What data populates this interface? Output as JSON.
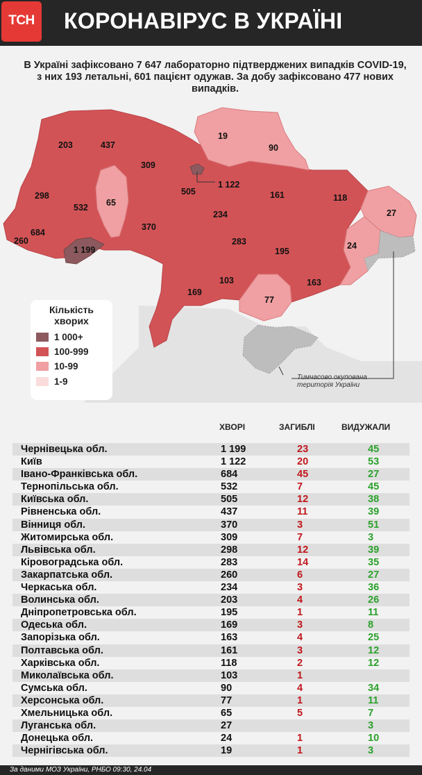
{
  "header": {
    "logo": "ТСН",
    "title": "КОРОНАВІРУС В УКРАЇНІ"
  },
  "summary": "В Україні зафіксовано 7 647 лабораторно підтверджених випадків COVID-19, з них 193 летальні, 601 пацієнт одужав. За добу зафіксовано 477 нових випадків.",
  "colors": {
    "dark": "#8c5a5e",
    "red": "#d25356",
    "pink": "#f0a0a2",
    "light": "#fbdcdc",
    "grey": "#c4c4c4",
    "deaths": "#c0161b",
    "recovered": "#2aa12a"
  },
  "map_labels": {
    "volyn": "203",
    "rivne": "437",
    "zhytomyr": "309",
    "chernihiv": "19",
    "sumy": "90",
    "lviv": "298",
    "ternopil": "532",
    "khmelnytskyi": "65",
    "kyiv_city": "1 122",
    "kyiv_obl": "505",
    "poltava": "161",
    "kharkiv": "118",
    "luhansk": "27",
    "ivano_frankivsk": "684",
    "vinnytsia": "370",
    "cherkasy": "234",
    "zakarpattia": "260",
    "chernivtsi": "1 199",
    "kirovohrad": "283",
    "dnipro": "195",
    "donetsk": "24",
    "odesa": "169",
    "mykolaiv": "103",
    "kherson": "77",
    "zaporizhzhia": "163"
  },
  "legend": {
    "title": "Кількість хворих",
    "items": [
      {
        "label": "1 000+",
        "color": "#8c5a5e"
      },
      {
        "label": "100-999",
        "color": "#d25356"
      },
      {
        "label": "10-99",
        "color": "#f0a0a2"
      },
      {
        "label": "1-9",
        "color": "#fbdcdc"
      }
    ]
  },
  "occupied_note": "Тимчасово окупована територія України",
  "table": {
    "headers": {
      "cases": "ХВОРІ",
      "deaths": "ЗАГИБЛІ",
      "recovered": "ВИДУЖАЛИ"
    },
    "rows": [
      {
        "name": "Чернівецька обл.",
        "cases": "1 199",
        "deaths": "23",
        "recovered": "45"
      },
      {
        "name": "Київ",
        "cases": "1 122",
        "deaths": "20",
        "recovered": "53"
      },
      {
        "name": "Івано-Франківська обл.",
        "cases": "684",
        "deaths": "45",
        "recovered": "27"
      },
      {
        "name": "Тернопільська обл.",
        "cases": "532",
        "deaths": "7",
        "recovered": "45"
      },
      {
        "name": "Київська обл.",
        "cases": "505",
        "deaths": "12",
        "recovered": "38"
      },
      {
        "name": "Рівненська обл.",
        "cases": "437",
        "deaths": "11",
        "recovered": "39"
      },
      {
        "name": "Вінниця обл.",
        "cases": "370",
        "deaths": "3",
        "recovered": "51"
      },
      {
        "name": "Житомирська обл.",
        "cases": "309",
        "deaths": "7",
        "recovered": "3"
      },
      {
        "name": "Львівська обл.",
        "cases": "298",
        "deaths": "12",
        "recovered": "39"
      },
      {
        "name": "Кіровоградська обл.",
        "cases": "283",
        "deaths": "14",
        "recovered": "35"
      },
      {
        "name": "Закарпатська обл.",
        "cases": "260",
        "deaths": "6",
        "recovered": "27"
      },
      {
        "name": "Черкаська обл.",
        "cases": "234",
        "deaths": "3",
        "recovered": "36"
      },
      {
        "name": "Волинська обл.",
        "cases": "203",
        "deaths": "4",
        "recovered": "26"
      },
      {
        "name": "Дніпропетровська обл.",
        "cases": "195",
        "deaths": "1",
        "recovered": "11"
      },
      {
        "name": "Одеська обл.",
        "cases": "169",
        "deaths": "3",
        "recovered": "8"
      },
      {
        "name": "Запорізька обл.",
        "cases": "163",
        "deaths": "4",
        "recovered": "25"
      },
      {
        "name": "Полтавська обл.",
        "cases": "161",
        "deaths": "3",
        "recovered": "12"
      },
      {
        "name": "Харківська обл.",
        "cases": "118",
        "deaths": "2",
        "recovered": "12"
      },
      {
        "name": "Миколаївська обл.",
        "cases": "103",
        "deaths": "1",
        "recovered": ""
      },
      {
        "name": "Сумська обл.",
        "cases": "90",
        "deaths": "4",
        "recovered": "34"
      },
      {
        "name": "Херсонська обл.",
        "cases": "77",
        "deaths": "1",
        "recovered": "11"
      },
      {
        "name": "Хмельницька обл.",
        "cases": "65",
        "deaths": "5",
        "recovered": "7"
      },
      {
        "name": "Луганська обл.",
        "cases": "27",
        "deaths": "",
        "recovered": "3"
      },
      {
        "name": "Донецька обл.",
        "cases": "24",
        "deaths": "1",
        "recovered": "10"
      },
      {
        "name": "Чернігівська обл.",
        "cases": "19",
        "deaths": "1",
        "recovered": "3"
      }
    ]
  },
  "source": "За даними МОЗ України, РНБО  09:30, 24.04"
}
